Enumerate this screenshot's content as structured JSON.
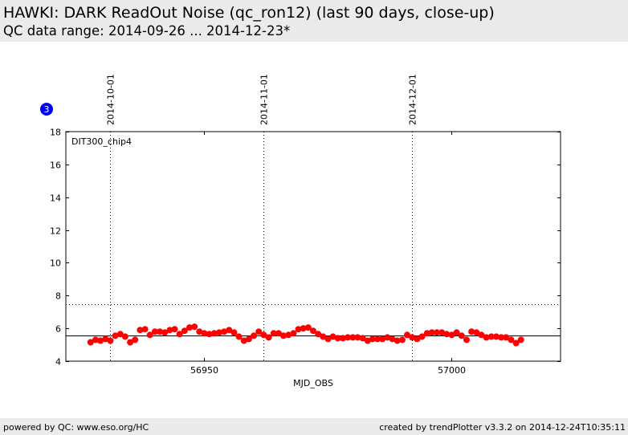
{
  "header": {
    "title": "HAWKI: DARK ReadOut Noise (qc_ron12) (last 90 days, close-up)",
    "subtitle": "QC data range: 2014-09-26 ... 2014-12-23*"
  },
  "footer": {
    "left": "powered by QC: www.eso.org/HC",
    "right": "created by trendPlotter v3.3.2 on 2014-12-24T10:35:11"
  },
  "badge": {
    "label": "3",
    "color": "#0000ee"
  },
  "chart_data": {
    "type": "scatter",
    "panel_label": "DIT300_chip4",
    "xlabel": "MJD_OBS",
    "ylabel": "",
    "xlim": [
      56922,
      57022
    ],
    "ylim": [
      4,
      18
    ],
    "xticks": [
      56950,
      57000
    ],
    "xtick_labels": [
      "56950",
      "57000"
    ],
    "yticks": [
      4,
      6,
      8,
      10,
      12,
      14,
      16,
      18
    ],
    "ytick_labels": [
      "4",
      "6",
      "8",
      "10",
      "12",
      "14",
      "16",
      "18"
    ],
    "grid": false,
    "date_markers": [
      {
        "x": 56931,
        "label": "2014-10-01"
      },
      {
        "x": 56962,
        "label": "2014-11-01"
      },
      {
        "x": 56992,
        "label": "2014-12-01"
      }
    ],
    "reference_lines": [
      {
        "y": 5.55,
        "style": "solid",
        "color": "#000000"
      },
      {
        "y": 7.5,
        "style": "dotted",
        "color": "#000000"
      }
    ],
    "marker_color": "#ff0000",
    "series": [
      {
        "x": [
          56927,
          56928,
          56929,
          56930,
          56931,
          56932,
          56933,
          56934,
          56935,
          56936,
          56937,
          56938,
          56939,
          56940,
          56941,
          56942,
          56943,
          56944,
          56945,
          56946,
          56947,
          56948,
          56949,
          56950,
          56951,
          56952,
          56953,
          56954,
          56955,
          56956,
          56957,
          56958,
          56959,
          56960,
          56961,
          56962,
          56963,
          56964,
          56965,
          56966,
          56967,
          56968,
          56969,
          56970,
          56971,
          56972,
          56973,
          56974,
          56975,
          56976,
          56977,
          56978,
          56979,
          56980,
          56981,
          56982,
          56983,
          56984,
          56985,
          56986,
          56987,
          56988,
          56989,
          56990,
          56991,
          56992,
          56993,
          56994,
          56995,
          56996,
          56997,
          56998,
          56999,
          57000,
          57001,
          57002,
          57003,
          57004,
          57005,
          57006,
          57007,
          57008,
          57009,
          57010,
          57011,
          57012,
          57013,
          57014
        ],
        "y": [
          5.15,
          5.3,
          5.25,
          5.35,
          5.25,
          5.55,
          5.65,
          5.5,
          5.15,
          5.3,
          5.9,
          5.95,
          5.6,
          5.8,
          5.8,
          5.75,
          5.9,
          5.95,
          5.65,
          5.85,
          6.05,
          6.1,
          5.8,
          5.7,
          5.65,
          5.7,
          5.75,
          5.8,
          5.9,
          5.75,
          5.5,
          5.25,
          5.35,
          5.55,
          5.8,
          5.6,
          5.45,
          5.7,
          5.7,
          5.55,
          5.6,
          5.7,
          5.95,
          6.0,
          6.05,
          5.85,
          5.65,
          5.5,
          5.35,
          5.5,
          5.4,
          5.4,
          5.45,
          5.45,
          5.45,
          5.4,
          5.25,
          5.35,
          5.35,
          5.35,
          5.45,
          5.35,
          5.25,
          5.3,
          5.6,
          5.45,
          5.35,
          5.5,
          5.7,
          5.75,
          5.75,
          5.75,
          5.65,
          5.6,
          5.75,
          5.55,
          5.3,
          5.8,
          5.75,
          5.6,
          5.45,
          5.5,
          5.5,
          5.45,
          5.45,
          5.3,
          5.1,
          5.3
        ]
      }
    ]
  }
}
